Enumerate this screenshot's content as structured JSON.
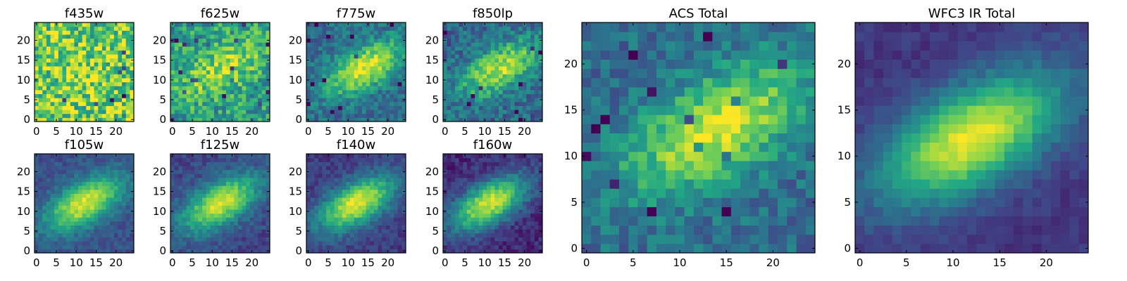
{
  "figure": {
    "colormap": "viridis",
    "colormap_stops": [
      "#440154",
      "#414487",
      "#2a788e",
      "#22a884",
      "#7ad151",
      "#fde725"
    ]
  },
  "chart_data": [
    {
      "type": "heatmap",
      "title": "f435w",
      "grid": [
        25,
        25
      ],
      "xlim": [
        0,
        24
      ],
      "ylim": [
        0,
        24
      ],
      "xticks": [
        0,
        5,
        10,
        15,
        20
      ],
      "yticks": [
        0,
        5,
        10,
        15,
        20
      ],
      "peak": [
        12,
        12
      ],
      "peak_signal": 0.05,
      "noise": 0.3,
      "background": 0.78
    },
    {
      "type": "heatmap",
      "title": "f625w",
      "grid": [
        25,
        25
      ],
      "xlim": [
        0,
        24
      ],
      "ylim": [
        0,
        24
      ],
      "xticks": [
        0,
        5,
        10,
        15,
        20
      ],
      "yticks": [
        0,
        5,
        10,
        15,
        20
      ],
      "peak": [
        13,
        13
      ],
      "peak_signal": 0.35,
      "noise": 0.22,
      "background": 0.55
    },
    {
      "type": "heatmap",
      "title": "f775w",
      "grid": [
        25,
        25
      ],
      "xlim": [
        0,
        24
      ],
      "ylim": [
        0,
        24
      ],
      "xticks": [
        0,
        5,
        10,
        15,
        20
      ],
      "yticks": [
        0,
        5,
        10,
        15,
        20
      ],
      "peak": [
        14,
        13
      ],
      "peak_signal": 0.6,
      "noise": 0.14,
      "background": 0.35
    },
    {
      "type": "heatmap",
      "title": "f850lp",
      "grid": [
        25,
        25
      ],
      "xlim": [
        0,
        24
      ],
      "ylim": [
        0,
        24
      ],
      "xticks": [
        0,
        5,
        10,
        15,
        20
      ],
      "yticks": [
        0,
        5,
        10,
        15,
        20
      ],
      "peak": [
        14,
        13
      ],
      "peak_signal": 0.58,
      "noise": 0.16,
      "background": 0.33
    },
    {
      "type": "heatmap",
      "title": "f105w",
      "grid": [
        25,
        25
      ],
      "xlim": [
        0,
        24
      ],
      "ylim": [
        0,
        24
      ],
      "xticks": [
        0,
        5,
        10,
        15,
        20
      ],
      "yticks": [
        0,
        5,
        10,
        15,
        20
      ],
      "peak": [
        12,
        12
      ],
      "peak_signal": 0.7,
      "noise": 0.08,
      "background": 0.25
    },
    {
      "type": "heatmap",
      "title": "f125w",
      "grid": [
        25,
        25
      ],
      "xlim": [
        0,
        24
      ],
      "ylim": [
        0,
        24
      ],
      "xticks": [
        0,
        5,
        10,
        15,
        20
      ],
      "yticks": [
        0,
        5,
        10,
        15,
        20
      ],
      "peak": [
        12,
        12
      ],
      "peak_signal": 0.72,
      "noise": 0.09,
      "background": 0.22
    },
    {
      "type": "heatmap",
      "title": "f140w",
      "grid": [
        25,
        25
      ],
      "xlim": [
        0,
        24
      ],
      "ylim": [
        0,
        24
      ],
      "xticks": [
        0,
        5,
        10,
        15,
        20
      ],
      "yticks": [
        0,
        5,
        10,
        15,
        20
      ],
      "peak": [
        12,
        12
      ],
      "peak_signal": 0.78,
      "noise": 0.08,
      "background": 0.18
    },
    {
      "type": "heatmap",
      "title": "f160w",
      "grid": [
        25,
        25
      ],
      "xlim": [
        0,
        24
      ],
      "ylim": [
        0,
        24
      ],
      "xticks": [
        0,
        5,
        10,
        15,
        20
      ],
      "yticks": [
        0,
        5,
        10,
        15,
        20
      ],
      "peak": [
        11,
        12
      ],
      "peak_signal": 0.82,
      "noise": 0.09,
      "background": 0.12
    },
    {
      "type": "heatmap",
      "title": "ACS Total",
      "grid": [
        25,
        25
      ],
      "xlim": [
        0,
        24
      ],
      "ylim": [
        0,
        24
      ],
      "xticks": [
        0,
        5,
        10,
        15,
        20
      ],
      "yticks": [
        0,
        5,
        10,
        15,
        20
      ],
      "peak": [
        14,
        13
      ],
      "peak_signal": 0.6,
      "noise": 0.13,
      "background": 0.35
    },
    {
      "type": "heatmap",
      "title": "WFC3 IR Total",
      "grid": [
        25,
        25
      ],
      "xlim": [
        0,
        24
      ],
      "ylim": [
        0,
        24
      ],
      "xticks": [
        0,
        5,
        10,
        15,
        20
      ],
      "yticks": [
        0,
        5,
        10,
        15,
        20
      ],
      "peak": [
        12,
        12
      ],
      "peak_signal": 0.82,
      "noise": 0.05,
      "background": 0.16
    }
  ]
}
